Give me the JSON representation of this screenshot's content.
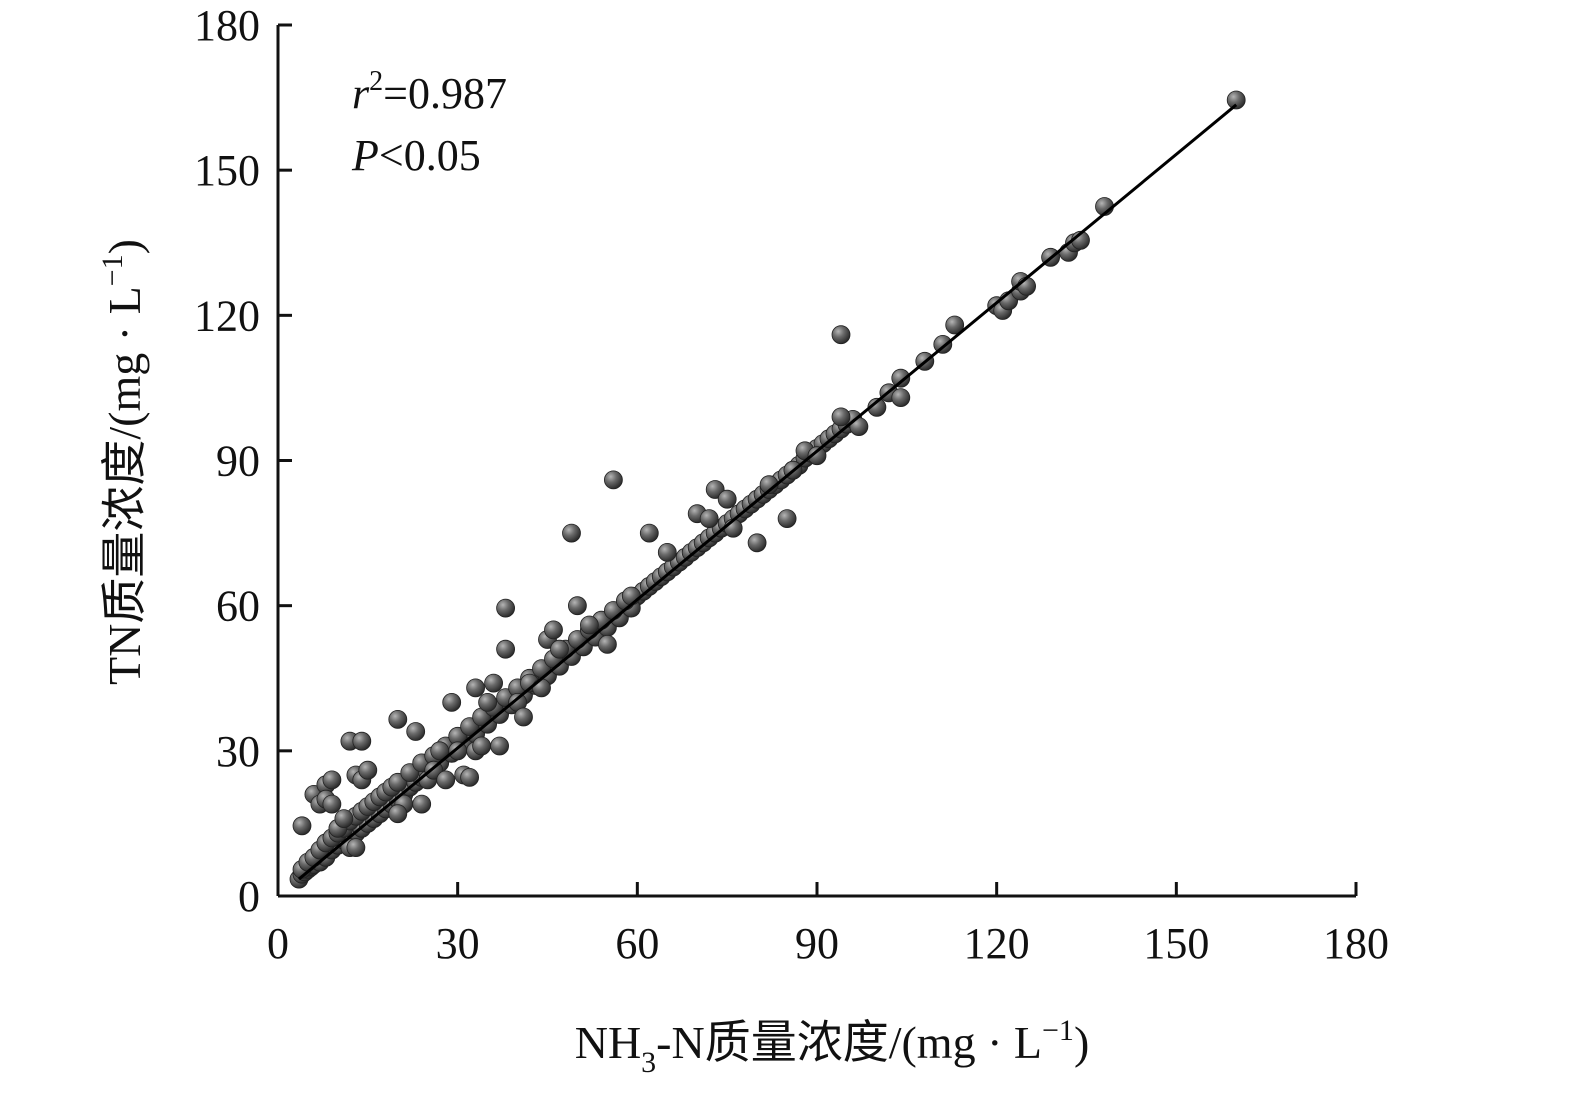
{
  "chart_data": {
    "type": "scatter",
    "xlim": [
      0,
      180
    ],
    "ylim": [
      0,
      180
    ],
    "x_ticks": [
      "0",
      "30",
      "60",
      "90",
      "120",
      "150",
      "180"
    ],
    "y_ticks": [
      "0",
      "30",
      "60",
      "90",
      "120",
      "150",
      "180"
    ],
    "xlabel": {
      "part1": "NH",
      "sub": "3",
      "part2": "-N质量浓度/(mg · L",
      "sup": "−1",
      "part3": ")"
    },
    "ylabel": {
      "part1": "TN质量浓度/(mg · L",
      "sup": "−1",
      "part2": ")"
    },
    "annotations": {
      "r_symbol": "r",
      "r_sup": "2",
      "r_value": "=0.987",
      "p_symbol": "P",
      "p_value": "<0.05"
    },
    "grid": false,
    "regression_line": {
      "x": [
        3.5,
        160
      ],
      "y": [
        3.5,
        163.5
      ]
    },
    "series": [
      {
        "marker_color": "#555555",
        "points": [
          [
            3.5,
            3.5
          ],
          [
            4,
            4.5
          ],
          [
            4.5,
            5
          ],
          [
            5,
            5.5
          ],
          [
            5.5,
            6
          ],
          [
            6,
            7
          ],
          [
            6.5,
            7.5
          ],
          [
            7,
            8
          ],
          [
            7.5,
            8.5
          ],
          [
            8,
            9
          ],
          [
            8.5,
            10
          ],
          [
            9,
            10.5
          ],
          [
            9.5,
            11
          ],
          [
            10,
            11.5
          ],
          [
            10.5,
            12
          ],
          [
            11,
            12.5
          ],
          [
            11.5,
            13
          ],
          [
            12,
            13.5
          ],
          [
            12.5,
            14
          ],
          [
            13,
            14.5
          ],
          [
            13.5,
            15
          ],
          [
            14,
            15.5
          ],
          [
            14.5,
            16
          ],
          [
            15,
            16.5
          ],
          [
            15.5,
            17
          ],
          [
            16,
            17.5
          ],
          [
            16.5,
            18
          ],
          [
            17,
            18.5
          ],
          [
            17.5,
            19
          ],
          [
            18,
            19.5
          ],
          [
            18.5,
            20
          ],
          [
            19,
            20.5
          ],
          [
            19.5,
            21
          ],
          [
            20,
            21.5
          ],
          [
            21,
            22
          ],
          [
            22,
            23
          ],
          [
            23,
            24
          ],
          [
            24,
            25
          ],
          [
            25,
            26
          ],
          [
            26,
            27.5
          ],
          [
            27,
            28.5
          ],
          [
            28,
            29.5
          ],
          [
            29,
            30.5
          ],
          [
            30,
            31.5
          ],
          [
            31,
            32.5
          ],
          [
            32,
            33.5
          ],
          [
            33,
            34.5
          ],
          [
            34,
            35.5
          ],
          [
            35,
            36.5
          ],
          [
            36,
            37.5
          ],
          [
            37,
            38.5
          ],
          [
            38,
            39.5
          ],
          [
            39,
            40.5
          ],
          [
            40,
            41.5
          ],
          [
            41,
            42.5
          ],
          [
            42,
            43.5
          ],
          [
            43,
            44.5
          ],
          [
            44,
            45.5
          ],
          [
            45,
            46.5
          ],
          [
            46,
            47.5
          ],
          [
            47,
            48.5
          ],
          [
            48,
            49.5
          ],
          [
            49,
            50.5
          ],
          [
            50,
            51.5
          ],
          [
            51,
            52.5
          ],
          [
            52,
            53.5
          ],
          [
            53,
            54.5
          ],
          [
            54,
            55.5
          ],
          [
            55,
            56.5
          ],
          [
            56,
            57.5
          ],
          [
            57,
            58.5
          ],
          [
            58,
            59.5
          ],
          [
            59,
            60.5
          ],
          [
            60,
            62
          ],
          [
            61,
            63
          ],
          [
            62,
            64
          ],
          [
            63,
            65
          ],
          [
            64,
            66
          ],
          [
            65,
            67
          ],
          [
            66,
            68
          ],
          [
            67,
            69
          ],
          [
            68,
            70
          ],
          [
            69,
            71
          ],
          [
            70,
            72
          ],
          [
            71,
            73
          ],
          [
            72,
            74
          ],
          [
            73,
            75
          ],
          [
            74,
            76
          ],
          [
            75,
            77
          ],
          [
            76,
            78
          ],
          [
            77,
            79
          ],
          [
            78,
            80
          ],
          [
            79,
            81
          ],
          [
            80,
            82
          ],
          [
            81,
            83
          ],
          [
            82,
            84
          ],
          [
            83,
            85
          ],
          [
            84,
            86
          ],
          [
            85,
            87
          ],
          [
            86,
            88
          ],
          [
            87,
            89
          ],
          [
            88,
            90.5
          ],
          [
            89,
            91.5
          ],
          [
            90,
            92.5
          ],
          [
            91,
            93.5
          ],
          [
            92,
            94.5
          ],
          [
            93,
            95.5
          ],
          [
            94,
            96.5
          ],
          [
            95,
            97.5
          ],
          [
            96,
            98.5
          ],
          [
            5,
            6
          ],
          [
            6,
            6.5
          ],
          [
            7,
            7
          ],
          [
            8,
            8
          ],
          [
            9,
            9.5
          ],
          [
            10,
            10.5
          ],
          [
            11,
            11.5
          ],
          [
            12,
            12
          ],
          [
            13,
            13
          ],
          [
            14,
            14
          ],
          [
            15,
            15
          ],
          [
            16,
            16
          ],
          [
            17,
            17
          ],
          [
            18,
            18
          ],
          [
            19,
            19
          ],
          [
            20,
            20
          ],
          [
            21,
            21
          ],
          [
            22,
            22.5
          ],
          [
            23,
            23.5
          ],
          [
            24,
            24.5
          ],
          [
            25,
            25.5
          ],
          [
            27,
            27.5
          ],
          [
            29,
            29.5
          ],
          [
            31,
            31.5
          ],
          [
            33,
            33.5
          ],
          [
            35,
            35.5
          ],
          [
            37,
            37.5
          ],
          [
            39,
            39.5
          ],
          [
            41,
            41.5
          ],
          [
            43,
            43.5
          ],
          [
            45,
            45.5
          ],
          [
            47,
            47.5
          ],
          [
            49,
            49.5
          ],
          [
            51,
            51.5
          ],
          [
            53,
            53.5
          ],
          [
            55,
            55.5
          ],
          [
            57,
            57.5
          ],
          [
            59,
            59.5
          ],
          [
            4,
            5.5
          ],
          [
            5,
            7
          ],
          [
            6,
            8
          ],
          [
            7,
            9.5
          ],
          [
            8,
            11
          ],
          [
            9,
            12
          ],
          [
            10,
            13
          ],
          [
            11,
            14
          ],
          [
            12,
            15.5
          ],
          [
            13,
            16.5
          ],
          [
            14,
            17.5
          ],
          [
            15,
            18.5
          ],
          [
            16,
            19.5
          ],
          [
            17,
            20.5
          ],
          [
            18,
            21.5
          ],
          [
            19,
            22.5
          ],
          [
            20,
            23.5
          ],
          [
            22,
            25.5
          ],
          [
            24,
            27.5
          ],
          [
            26,
            29
          ],
          [
            28,
            31
          ],
          [
            30,
            33
          ],
          [
            32,
            35
          ],
          [
            34,
            37
          ],
          [
            36,
            39
          ],
          [
            38,
            41
          ],
          [
            40,
            43
          ],
          [
            42,
            45
          ],
          [
            44,
            47
          ],
          [
            46,
            49
          ],
          [
            48,
            51
          ],
          [
            50,
            53
          ],
          [
            52,
            55
          ],
          [
            54,
            57
          ],
          [
            56,
            59
          ],
          [
            58,
            61
          ],
          [
            4,
            14.5
          ],
          [
            6,
            21
          ],
          [
            8,
            23
          ],
          [
            9,
            24
          ],
          [
            7,
            19
          ],
          [
            8,
            20
          ],
          [
            9,
            19
          ],
          [
            12,
            32
          ],
          [
            14,
            32
          ],
          [
            13,
            25
          ],
          [
            14,
            24
          ],
          [
            15,
            26
          ],
          [
            12,
            10
          ],
          [
            13,
            10
          ],
          [
            10,
            14
          ],
          [
            11,
            16
          ],
          [
            20,
            36.5
          ],
          [
            21,
            19
          ],
          [
            20,
            17
          ],
          [
            24,
            19
          ],
          [
            23,
            34
          ],
          [
            25,
            24
          ],
          [
            26,
            26
          ],
          [
            27,
            30
          ],
          [
            28,
            24
          ],
          [
            29,
            40
          ],
          [
            30,
            30
          ],
          [
            31,
            25
          ],
          [
            32,
            24.5
          ],
          [
            33,
            30
          ],
          [
            34,
            31
          ],
          [
            33,
            43
          ],
          [
            35,
            40
          ],
          [
            36,
            44
          ],
          [
            37,
            31
          ],
          [
            38,
            51
          ],
          [
            38,
            59.5
          ],
          [
            40,
            40
          ],
          [
            41,
            37
          ],
          [
            42,
            44
          ],
          [
            44,
            43
          ],
          [
            45,
            53
          ],
          [
            46,
            55
          ],
          [
            47,
            51
          ],
          [
            49,
            75
          ],
          [
            50,
            60
          ],
          [
            52,
            56
          ],
          [
            55,
            52
          ],
          [
            56,
            86
          ],
          [
            62,
            75
          ],
          [
            59,
            62
          ],
          [
            65,
            71
          ],
          [
            70,
            79
          ],
          [
            72,
            78
          ],
          [
            73,
            84
          ],
          [
            75,
            82
          ],
          [
            76,
            76
          ],
          [
            80,
            73
          ],
          [
            82,
            85
          ],
          [
            85,
            78
          ],
          [
            86,
            88
          ],
          [
            88,
            92
          ],
          [
            90,
            91
          ],
          [
            94,
            116
          ],
          [
            94,
            99
          ],
          [
            97,
            97
          ],
          [
            100,
            101
          ],
          [
            102,
            104
          ],
          [
            104,
            103
          ],
          [
            104,
            107
          ],
          [
            108,
            110.5
          ],
          [
            111,
            114
          ],
          [
            113,
            118
          ],
          [
            120,
            122
          ],
          [
            121,
            121
          ],
          [
            122,
            123
          ],
          [
            124,
            125
          ],
          [
            124,
            127
          ],
          [
            125,
            126
          ],
          [
            129,
            132
          ],
          [
            132,
            133
          ],
          [
            133,
            135
          ],
          [
            134,
            135.5
          ],
          [
            138,
            142.5
          ],
          [
            160,
            164.5
          ]
        ]
      }
    ]
  }
}
